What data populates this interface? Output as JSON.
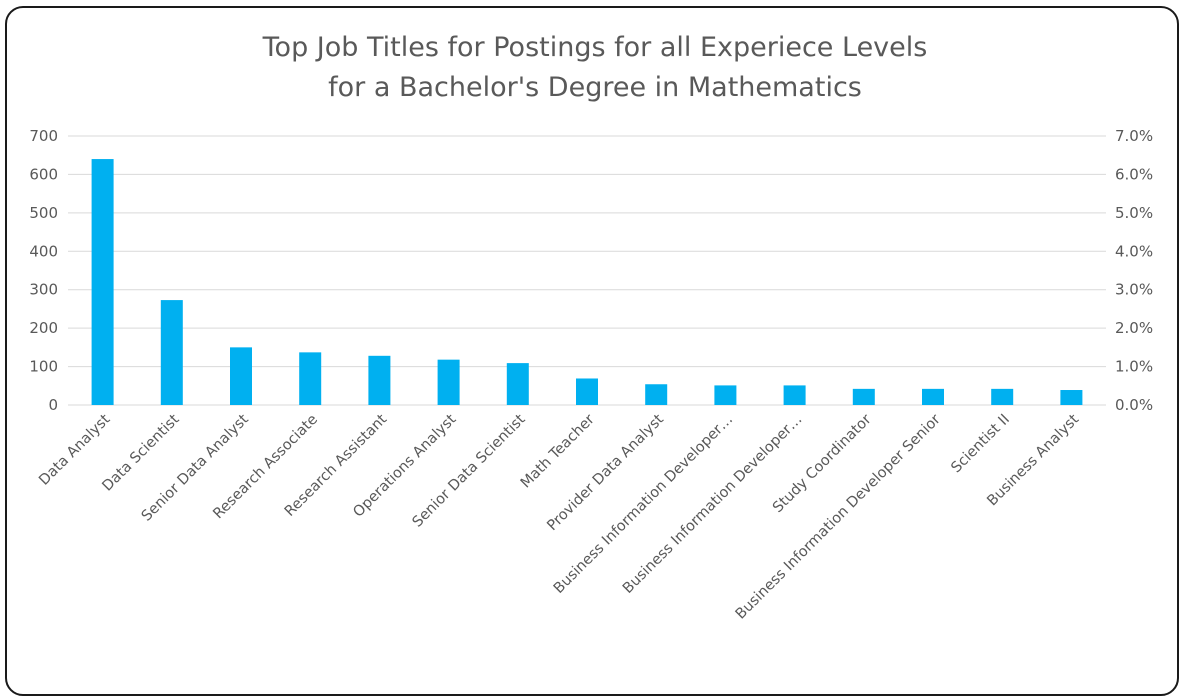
{
  "chart_data": {
    "type": "bar",
    "title": [
      "Top Job Titles for Postings for all Experiece Levels",
      "for a Bachelor's Degree in Mathematics"
    ],
    "categories": [
      "Data Analyst",
      "Data Scientist",
      "Senior Data Analyst",
      "Research Associate",
      "Research Assistant",
      "Operations Analyst",
      "Senior Data Scientist",
      "Math Teacher",
      "Provider Data Analyst",
      "Business Information Developer…",
      "Business Information Developer…",
      "Study Coordinator",
      "Business Information Developer Senior",
      "Scientist II",
      "Business Analyst"
    ],
    "values": [
      640,
      273,
      150,
      137,
      128,
      118,
      109,
      69,
      54,
      51,
      51,
      42,
      42,
      42,
      39
    ],
    "ylim": [
      0,
      700
    ],
    "yticks": [
      "0",
      "100",
      "200",
      "300",
      "400",
      "500",
      "600",
      "700"
    ],
    "y2lim": [
      0,
      7.0
    ],
    "y2ticks": [
      "0.0%",
      "1.0%",
      "2.0%",
      "3.0%",
      "4.0%",
      "5.0%",
      "6.0%",
      "7.0%"
    ],
    "grid": true,
    "bar_color": "#00b0f0",
    "grid_color": "#d9d9d9"
  }
}
